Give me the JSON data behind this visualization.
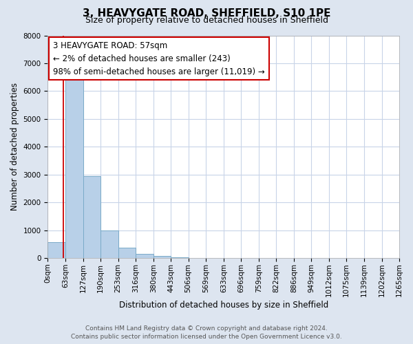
{
  "title": "3, HEAVYGATE ROAD, SHEFFIELD, S10 1PE",
  "subtitle": "Size of property relative to detached houses in Sheffield",
  "xlabel": "Distribution of detached houses by size in Sheffield",
  "ylabel": "Number of detached properties",
  "bin_edges": [
    0,
    63,
    127,
    190,
    253,
    316,
    380,
    443,
    506,
    569,
    633,
    696,
    759,
    822,
    886,
    949,
    1012,
    1075,
    1139,
    1202,
    1265
  ],
  "bin_labels": [
    "0sqm",
    "63sqm",
    "127sqm",
    "190sqm",
    "253sqm",
    "316sqm",
    "380sqm",
    "443sqm",
    "506sqm",
    "569sqm",
    "633sqm",
    "696sqm",
    "759sqm",
    "822sqm",
    "886sqm",
    "949sqm",
    "1012sqm",
    "1075sqm",
    "1139sqm",
    "1202sqm",
    "1265sqm"
  ],
  "bar_heights": [
    560,
    6400,
    2950,
    980,
    380,
    155,
    75,
    15,
    0,
    0,
    0,
    0,
    0,
    0,
    0,
    0,
    0,
    0,
    0,
    0
  ],
  "bar_color": "#b8d0e8",
  "bar_edge_color": "#7aaac8",
  "property_line_x": 57,
  "property_line_color": "#cc0000",
  "annotation_line1": "3 HEAVYGATE ROAD: 57sqm",
  "annotation_line2": "← 2% of detached houses are smaller (243)",
  "annotation_line3": "98% of semi-detached houses are larger (11,019) →",
  "annotation_box_color": "#ffffff",
  "annotation_box_edge_color": "#cc0000",
  "ylim": [
    0,
    8000
  ],
  "yticks": [
    0,
    1000,
    2000,
    3000,
    4000,
    5000,
    6000,
    7000,
    8000
  ],
  "figure_background_color": "#dde5f0",
  "plot_background_color": "#ffffff",
  "grid_color": "#c8d4e8",
  "footer_line1": "Contains HM Land Registry data © Crown copyright and database right 2024.",
  "footer_line2": "Contains public sector information licensed under the Open Government Licence v3.0.",
  "title_fontsize": 11,
  "subtitle_fontsize": 9,
  "axis_label_fontsize": 8.5,
  "tick_fontsize": 7.5,
  "annotation_fontsize": 8.5,
  "footer_fontsize": 6.5
}
